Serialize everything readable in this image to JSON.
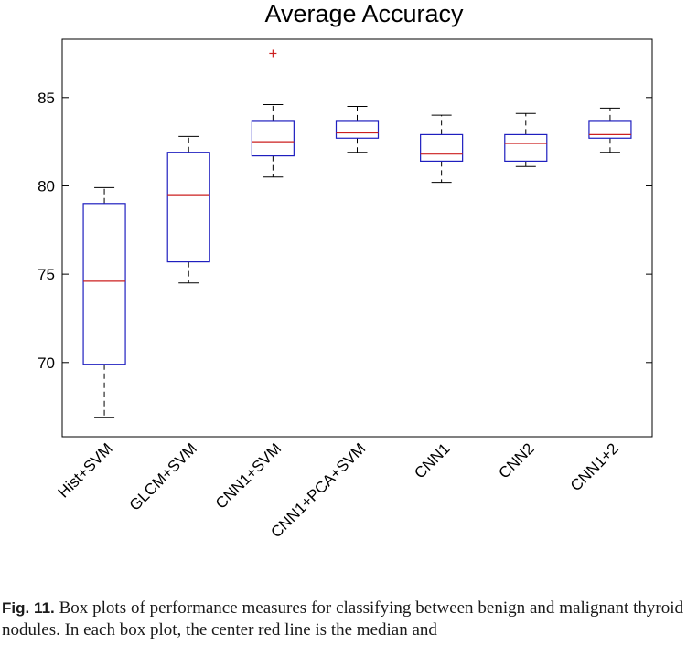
{
  "chart_data": {
    "type": "box",
    "title": "Average Accuracy",
    "xlabel": "",
    "ylabel": "",
    "ylim": [
      65.8,
      88.3
    ],
    "yticks": [
      70,
      75,
      80,
      85
    ],
    "grid": false,
    "colors": {
      "box": "#1f1fbf",
      "median": "#cc1f1f",
      "whisker": "#000000",
      "outlier": "#cc1f1f"
    },
    "categories": [
      "Hist+SVM",
      "GLCM+SVM",
      "CNN1+SVM",
      "CNN1+PCA+SVM",
      "CNN1",
      "CNN2",
      "CNN1+2"
    ],
    "boxes": [
      {
        "label": "Hist+SVM",
        "whisker_low": 66.9,
        "q1": 69.9,
        "median": 74.6,
        "q3": 79.0,
        "whisker_high": 79.9,
        "outliers": []
      },
      {
        "label": "GLCM+SVM",
        "whisker_low": 74.5,
        "q1": 75.7,
        "median": 79.5,
        "q3": 81.9,
        "whisker_high": 82.8,
        "outliers": []
      },
      {
        "label": "CNN1+SVM",
        "whisker_low": 80.5,
        "q1": 81.7,
        "median": 82.5,
        "q3": 83.7,
        "whisker_high": 84.6,
        "outliers": [
          87.5
        ]
      },
      {
        "label": "CNN1+PCA+SVM",
        "whisker_low": 81.9,
        "q1": 82.7,
        "median": 83.0,
        "q3": 83.7,
        "whisker_high": 84.5,
        "outliers": []
      },
      {
        "label": "CNN1",
        "whisker_low": 80.2,
        "q1": 81.4,
        "median": 81.8,
        "q3": 82.9,
        "whisker_high": 84.0,
        "outliers": []
      },
      {
        "label": "CNN2",
        "whisker_low": 81.1,
        "q1": 81.4,
        "median": 82.4,
        "q3": 82.9,
        "whisker_high": 84.1,
        "outliers": []
      },
      {
        "label": "CNN1+2",
        "whisker_low": 81.9,
        "q1": 82.7,
        "median": 82.9,
        "q3": 83.7,
        "whisker_high": 84.4,
        "outliers": []
      }
    ]
  },
  "caption": {
    "label": "Fig. 11.",
    "text": "Box plots of performance measures for classifying between benign and malignant thyroid nodules. In each box plot, the center red line is the median and"
  }
}
